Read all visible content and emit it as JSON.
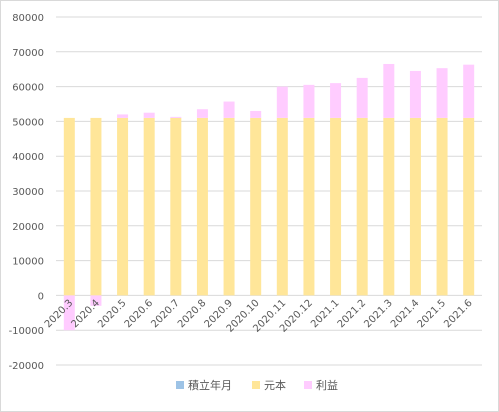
{
  "chart_data": {
    "type": "bar",
    "stacked": true,
    "categories": [
      "2020.3",
      "2020.4",
      "2020.5",
      "2020.6",
      "2020.7",
      "2020.8",
      "2020.9",
      "2020.10",
      "2020.11",
      "2020.12",
      "2021.1",
      "2021.2",
      "2021.3",
      "2021.4",
      "2021.5",
      "2021.6"
    ],
    "series": [
      {
        "name": "積立年月",
        "color": "#9dc3e6",
        "values": [
          0,
          0,
          0,
          0,
          0,
          0,
          0,
          0,
          0,
          0,
          0,
          0,
          0,
          0,
          0,
          0
        ]
      },
      {
        "name": "元本",
        "color": "#ffe699",
        "values": [
          51000,
          51000,
          51000,
          51000,
          51000,
          51000,
          51000,
          51000,
          51000,
          51000,
          51000,
          51000,
          51000,
          51000,
          51000,
          51000
        ]
      },
      {
        "name": "利益",
        "color": "#ffccff",
        "values": [
          -10000,
          -3000,
          1000,
          1500,
          300,
          2500,
          4700,
          2000,
          9000,
          9500,
          10000,
          11500,
          15500,
          13500,
          14300,
          15300
        ]
      }
    ],
    "ylim": [
      -20000,
      80000
    ],
    "yticks": [
      -20000,
      -10000,
      0,
      10000,
      20000,
      30000,
      40000,
      50000,
      60000,
      70000,
      80000
    ],
    "grid": true,
    "legend": "bottom"
  }
}
